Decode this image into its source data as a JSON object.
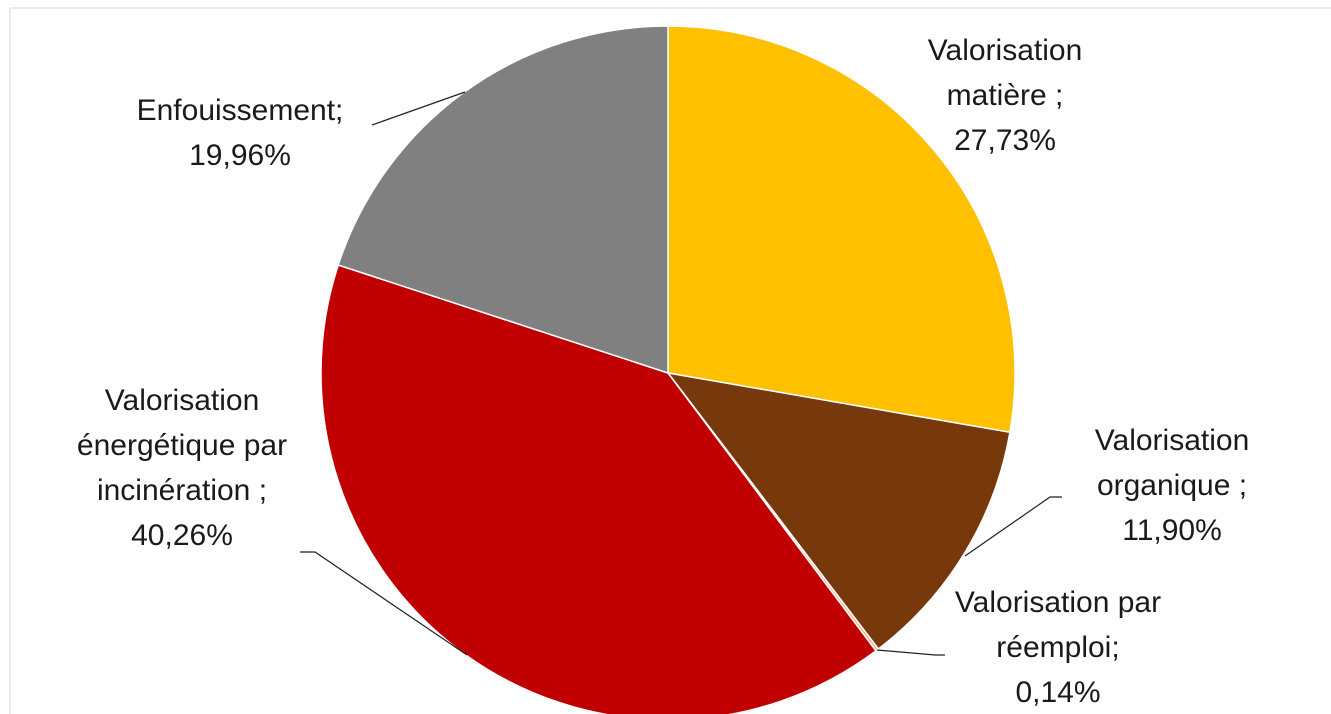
{
  "chart_data": {
    "type": "pie",
    "categories": [
      "Valorisation matière ;",
      "Valorisation organique ;",
      "Valorisation par réemploi;",
      "Valorisation énergétique par incinération ;",
      "Enfouissement;"
    ],
    "values": [
      27.73,
      11.9,
      0.14,
      40.26,
      19.96
    ],
    "value_labels": [
      "27,73%",
      "11,90%",
      "0,14%",
      "40,26%",
      "19,96%"
    ],
    "colors": [
      "#FFC000",
      "#77390B",
      "#F4B183",
      "#C00000",
      "#808080"
    ]
  }
}
